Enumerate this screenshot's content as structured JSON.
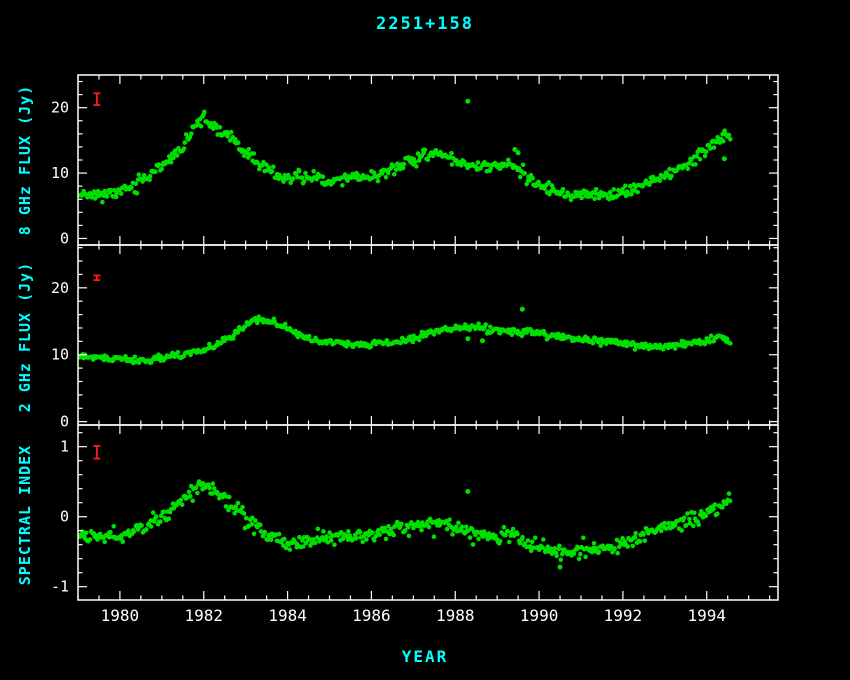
{
  "title": "2251+158",
  "colors": {
    "background": "#000000",
    "axis": "#ffffff",
    "data": "#00e000",
    "labels": "#00ffff",
    "error_bar": "#ff1a1a",
    "tick_text": "#ffffff"
  },
  "chart_data": {
    "type": "scatter",
    "title": "2251+158",
    "xlabel": "YEAR",
    "x_range": [
      1979.0,
      1995.7
    ],
    "xticks": [
      1980,
      1982,
      1984,
      1986,
      1988,
      1990,
      1992,
      1994
    ],
    "x_minor_step": 0.5,
    "points_per_year": 34,
    "seed": 11,
    "legend": "none",
    "grid": false,
    "panels": [
      {
        "name": "8ghz-flux",
        "ylabel": "8 GHz FLUX (Jy)",
        "y_range": [
          -1,
          25
        ],
        "yticks": [
          0,
          10,
          20
        ],
        "y_minor_step": 2,
        "scatter_sigma": 0.45,
        "trend": [
          [
            1979.05,
            7.0
          ],
          [
            1979.3,
            6.8
          ],
          [
            1979.6,
            6.6
          ],
          [
            1979.9,
            6.9
          ],
          [
            1980.1,
            7.4
          ],
          [
            1980.4,
            8.6
          ],
          [
            1980.7,
            9.6
          ],
          [
            1981.0,
            10.9
          ],
          [
            1981.3,
            12.6
          ],
          [
            1981.6,
            15.0
          ],
          [
            1981.85,
            17.7
          ],
          [
            1982.0,
            18.2
          ],
          [
            1982.2,
            17.3
          ],
          [
            1982.5,
            16.0
          ],
          [
            1982.8,
            14.4
          ],
          [
            1983.1,
            12.5
          ],
          [
            1983.4,
            11.0
          ],
          [
            1983.7,
            9.8
          ],
          [
            1984.0,
            9.0
          ],
          [
            1984.3,
            9.2
          ],
          [
            1984.6,
            9.6
          ],
          [
            1984.9,
            8.9
          ],
          [
            1985.2,
            8.9
          ],
          [
            1985.5,
            9.6
          ],
          [
            1985.8,
            9.2
          ],
          [
            1986.1,
            9.6
          ],
          [
            1986.4,
            10.3
          ],
          [
            1986.7,
            11.2
          ],
          [
            1987.0,
            12.0
          ],
          [
            1987.3,
            12.6
          ],
          [
            1987.6,
            13.0
          ],
          [
            1987.9,
            12.3
          ],
          [
            1988.2,
            11.6
          ],
          [
            1988.5,
            11.2
          ],
          [
            1988.8,
            10.9
          ],
          [
            1989.1,
            11.4
          ],
          [
            1989.4,
            11.0
          ],
          [
            1989.6,
            9.8
          ],
          [
            1989.9,
            8.4
          ],
          [
            1990.2,
            7.6
          ],
          [
            1990.5,
            7.0
          ],
          [
            1990.8,
            6.7
          ],
          [
            1991.1,
            6.5
          ],
          [
            1991.4,
            6.7
          ],
          [
            1991.7,
            6.5
          ],
          [
            1992.0,
            6.9
          ],
          [
            1992.3,
            7.6
          ],
          [
            1992.6,
            8.4
          ],
          [
            1992.9,
            9.3
          ],
          [
            1993.2,
            10.1
          ],
          [
            1993.5,
            11.2
          ],
          [
            1993.8,
            12.7
          ],
          [
            1994.1,
            14.2
          ],
          [
            1994.35,
            15.6
          ],
          [
            1994.55,
            16.3
          ]
        ],
        "outliers": [
          [
            1988.3,
            21.0
          ],
          [
            1989.42,
            13.6
          ],
          [
            1989.5,
            13.1
          ],
          [
            1994.42,
            12.2
          ]
        ],
        "error_bar": {
          "x": 1979.45,
          "y": 21.3,
          "half": 0.9
        }
      },
      {
        "name": "2ghz-flux",
        "ylabel": "2 GHz FLUX (Jy)",
        "y_range": [
          -0.5,
          26.4
        ],
        "yticks": [
          0,
          10,
          20
        ],
        "y_minor_step": 2,
        "scatter_sigma": 0.25,
        "trend": [
          [
            1979.05,
            9.8
          ],
          [
            1979.5,
            9.6
          ],
          [
            1980.0,
            9.3
          ],
          [
            1980.5,
            9.2
          ],
          [
            1981.0,
            9.5
          ],
          [
            1981.5,
            10.0
          ],
          [
            1982.0,
            10.8
          ],
          [
            1982.4,
            11.8
          ],
          [
            1982.8,
            13.4
          ],
          [
            1983.1,
            14.9
          ],
          [
            1983.35,
            15.3
          ],
          [
            1983.6,
            15.0
          ],
          [
            1983.9,
            14.2
          ],
          [
            1984.2,
            13.2
          ],
          [
            1984.5,
            12.4
          ],
          [
            1984.9,
            11.9
          ],
          [
            1985.3,
            11.6
          ],
          [
            1985.7,
            11.5
          ],
          [
            1986.1,
            11.6
          ],
          [
            1986.5,
            11.8
          ],
          [
            1986.9,
            12.3
          ],
          [
            1987.3,
            13.1
          ],
          [
            1987.7,
            13.7
          ],
          [
            1988.1,
            14.1
          ],
          [
            1988.5,
            14.2
          ],
          [
            1988.9,
            13.8
          ],
          [
            1989.3,
            13.4
          ],
          [
            1989.7,
            13.4
          ],
          [
            1990.1,
            13.2
          ],
          [
            1990.5,
            12.7
          ],
          [
            1990.9,
            12.3
          ],
          [
            1991.3,
            12.1
          ],
          [
            1991.7,
            11.9
          ],
          [
            1992.1,
            11.6
          ],
          [
            1992.5,
            11.4
          ],
          [
            1992.9,
            11.2
          ],
          [
            1993.3,
            11.4
          ],
          [
            1993.7,
            11.7
          ],
          [
            1994.1,
            12.3
          ],
          [
            1994.3,
            12.7
          ],
          [
            1994.55,
            12.0
          ]
        ],
        "outliers": [
          [
            1989.6,
            16.8
          ],
          [
            1988.3,
            12.4
          ],
          [
            1988.65,
            12.1
          ]
        ],
        "error_bar": {
          "x": 1979.45,
          "y": 21.5,
          "half": 0.35
        }
      },
      {
        "name": "spectral-index",
        "ylabel": "SPECTRAL INDEX",
        "y_range": [
          -1.19,
          1.31
        ],
        "yticks": [
          -1,
          0,
          1
        ],
        "y_minor_step": 0.2,
        "scatter_sigma": 0.055,
        "trend": [
          [
            1979.05,
            -0.25
          ],
          [
            1979.5,
            -0.3
          ],
          [
            1980.0,
            -0.3
          ],
          [
            1980.4,
            -0.15
          ],
          [
            1980.8,
            -0.05
          ],
          [
            1981.2,
            0.08
          ],
          [
            1981.6,
            0.28
          ],
          [
            1981.9,
            0.45
          ],
          [
            1982.1,
            0.42
          ],
          [
            1982.4,
            0.3
          ],
          [
            1982.8,
            0.1
          ],
          [
            1983.2,
            -0.12
          ],
          [
            1983.6,
            -0.3
          ],
          [
            1984.0,
            -0.4
          ],
          [
            1984.4,
            -0.35
          ],
          [
            1984.8,
            -0.32
          ],
          [
            1985.2,
            -0.3
          ],
          [
            1985.6,
            -0.27
          ],
          [
            1986.0,
            -0.26
          ],
          [
            1986.4,
            -0.22
          ],
          [
            1986.8,
            -0.16
          ],
          [
            1987.2,
            -0.12
          ],
          [
            1987.6,
            -0.1
          ],
          [
            1988.0,
            -0.16
          ],
          [
            1988.4,
            -0.24
          ],
          [
            1988.8,
            -0.3
          ],
          [
            1989.2,
            -0.22
          ],
          [
            1989.6,
            -0.34
          ],
          [
            1990.0,
            -0.44
          ],
          [
            1990.4,
            -0.5
          ],
          [
            1990.8,
            -0.55
          ],
          [
            1991.2,
            -0.47
          ],
          [
            1991.6,
            -0.45
          ],
          [
            1992.0,
            -0.4
          ],
          [
            1992.4,
            -0.3
          ],
          [
            1992.8,
            -0.2
          ],
          [
            1993.2,
            -0.1
          ],
          [
            1993.6,
            -0.04
          ],
          [
            1994.0,
            0.05
          ],
          [
            1994.3,
            0.14
          ],
          [
            1994.55,
            0.2
          ]
        ],
        "outliers": [
          [
            1988.3,
            0.36
          ],
          [
            1990.5,
            -0.72
          ]
        ],
        "error_bar": {
          "x": 1979.45,
          "y": 0.92,
          "half": 0.09
        }
      }
    ]
  }
}
